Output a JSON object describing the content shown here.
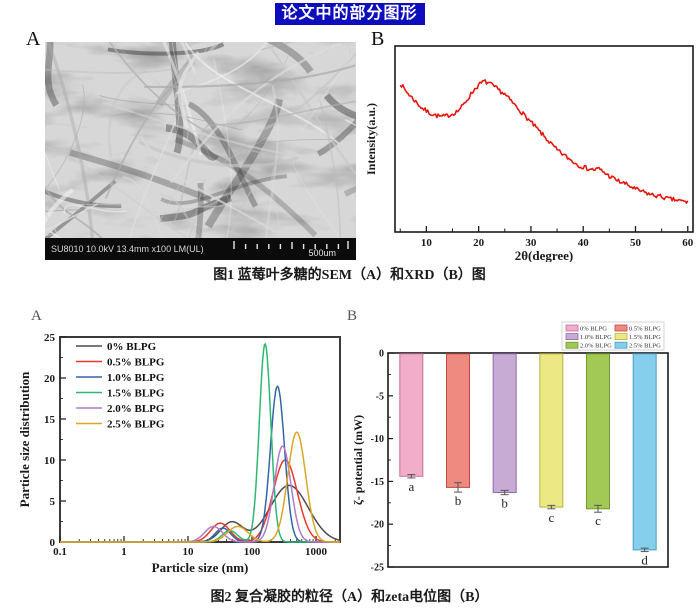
{
  "page": {
    "title": "论文中的部分图形"
  },
  "figure1": {
    "panel_a_label": "A",
    "panel_b_label": "B",
    "caption": "图1 蓝莓叶多糖的SEM（A）和XRD（B）图",
    "sem": {
      "info_text": "SU8010 10.0kV 13.4mm x100 LM(UL)",
      "scale_label": "500um"
    }
  },
  "figure2": {
    "panel_a_label": "A",
    "panel_b_label": "B",
    "caption": "图2 复合凝胶的粒径（A）和zeta电位图（B）"
  },
  "chart_data": [
    {
      "id": "xrd",
      "type": "line",
      "title": "",
      "xlabel": "2θ(degree)",
      "ylabel": "Intensity(a.u.)",
      "xlim": [
        4,
        61
      ],
      "x_major_ticks": [
        10,
        20,
        30,
        40,
        50,
        60
      ],
      "x_minor_ticks": [
        5,
        15,
        25,
        35,
        45,
        55
      ],
      "line_color": "#e8150d",
      "noise_amplitude": 0.012,
      "points": [
        [
          5,
          0.8
        ],
        [
          6,
          0.76
        ],
        [
          7,
          0.73
        ],
        [
          8,
          0.7
        ],
        [
          9,
          0.67
        ],
        [
          10,
          0.65
        ],
        [
          11,
          0.635
        ],
        [
          12,
          0.625
        ],
        [
          13,
          0.62
        ],
        [
          14,
          0.625
        ],
        [
          15,
          0.635
        ],
        [
          16,
          0.65
        ],
        [
          17,
          0.68
        ],
        [
          18,
          0.72
        ],
        [
          19,
          0.76
        ],
        [
          20,
          0.79
        ],
        [
          21,
          0.81
        ],
        [
          22,
          0.8
        ],
        [
          23,
          0.78
        ],
        [
          24,
          0.76
        ],
        [
          25,
          0.74
        ],
        [
          26,
          0.71
        ],
        [
          27,
          0.68
        ],
        [
          28,
          0.65
        ],
        [
          29,
          0.62
        ],
        [
          30,
          0.59
        ],
        [
          31,
          0.56
        ],
        [
          32,
          0.53
        ],
        [
          33,
          0.5
        ],
        [
          34,
          0.47
        ],
        [
          35,
          0.44
        ],
        [
          36,
          0.42
        ],
        [
          37,
          0.4
        ],
        [
          38,
          0.38
        ],
        [
          39,
          0.36
        ],
        [
          40,
          0.35
        ],
        [
          41,
          0.34
        ],
        [
          42,
          0.335
        ],
        [
          43,
          0.34
        ],
        [
          44,
          0.32
        ],
        [
          45,
          0.3
        ],
        [
          46,
          0.285
        ],
        [
          47,
          0.27
        ],
        [
          48,
          0.26
        ],
        [
          49,
          0.245
        ],
        [
          50,
          0.23
        ],
        [
          51,
          0.22
        ],
        [
          52,
          0.21
        ],
        [
          53,
          0.2
        ],
        [
          54,
          0.195
        ],
        [
          55,
          0.19
        ],
        [
          56,
          0.18
        ],
        [
          57,
          0.175
        ],
        [
          58,
          0.17
        ],
        [
          59,
          0.165
        ],
        [
          60,
          0.16
        ]
      ]
    },
    {
      "id": "particle-size",
      "type": "line",
      "title": "",
      "xlabel": "Particle size (nm)",
      "ylabel": "Particle size distribution",
      "x_scale": "log",
      "xlim": [
        0.1,
        2370
      ],
      "ylim": [
        0,
        25
      ],
      "x_major_ticks": [
        0.1,
        1,
        10,
        100,
        1000
      ],
      "x_major_tick_labels": [
        "0.1",
        "1",
        "10",
        "100",
        "1000"
      ],
      "y_major_ticks": [
        0,
        5,
        10,
        15,
        20,
        25
      ],
      "legend_position": "upper-left",
      "series": [
        {
          "name": "0% BLPG",
          "color": "#4d4d4d",
          "peaks": [
            {
              "center": 48,
              "height": 2.4,
              "sigma": 0.17
            },
            {
              "center": 380,
              "height": 6.9,
              "sigma": 0.3
            }
          ]
        },
        {
          "name": "0.5% BLPG",
          "color": "#e8382e",
          "peaks": [
            {
              "center": 32,
              "height": 2.3,
              "sigma": 0.15
            },
            {
              "center": 330,
              "height": 10.0,
              "sigma": 0.19
            }
          ]
        },
        {
          "name": "1.0% BLPG",
          "color": "#3465a8",
          "peaks": [
            {
              "center": 35,
              "height": 1.7,
              "sigma": 0.12
            },
            {
              "center": 250,
              "height": 19.0,
              "sigma": 0.11
            }
          ]
        },
        {
          "name": "1.5% BLPG",
          "color": "#2eb872",
          "peaks": [
            {
              "center": 45,
              "height": 1.4,
              "sigma": 0.12
            },
            {
              "center": 160,
              "height": 24.2,
              "sigma": 0.09
            }
          ]
        },
        {
          "name": "2.0% BLPG",
          "color": "#b07cc6",
          "peaks": [
            {
              "center": 25,
              "height": 1.9,
              "sigma": 0.14
            },
            {
              "center": 300,
              "height": 11.7,
              "sigma": 0.13
            }
          ]
        },
        {
          "name": "2.5% BLPG",
          "color": "#dda726",
          "peaks": [
            {
              "center": 60,
              "height": 1.9,
              "sigma": 0.16
            },
            {
              "center": 500,
              "height": 13.4,
              "sigma": 0.14
            }
          ]
        }
      ]
    },
    {
      "id": "zeta",
      "type": "bar",
      "title": "",
      "ylabel": "ζ- potential (mW)",
      "ylim": [
        -25,
        0
      ],
      "y_major_ticks": [
        0,
        -5,
        -10,
        -15,
        -20,
        -25
      ],
      "categories": [
        "0% BLPG",
        "0.5% BLPG",
        "1.0% BLPG",
        "1.5% BLPG",
        "2.0% BLPG",
        "2.5% BLPG"
      ],
      "values": [
        -14.4,
        -15.7,
        -16.3,
        -18.0,
        -18.2,
        -23.0
      ],
      "errors": [
        0.2,
        0.55,
        0.25,
        0.2,
        0.4,
        0.2
      ],
      "sig_letters": [
        "a",
        "b",
        "b",
        "c",
        "c",
        "d"
      ],
      "bar_colors": [
        "#f0aecb",
        "#ee8a80",
        "#c7abd5",
        "#ece985",
        "#a2c855",
        "#85ceec"
      ],
      "bar_edge_colors": [
        "#c96f9e",
        "#c4483e",
        "#8f6aa8",
        "#b8b33f",
        "#6f9a31",
        "#4d9ec7"
      ],
      "legend_position": "upper-right"
    }
  ]
}
